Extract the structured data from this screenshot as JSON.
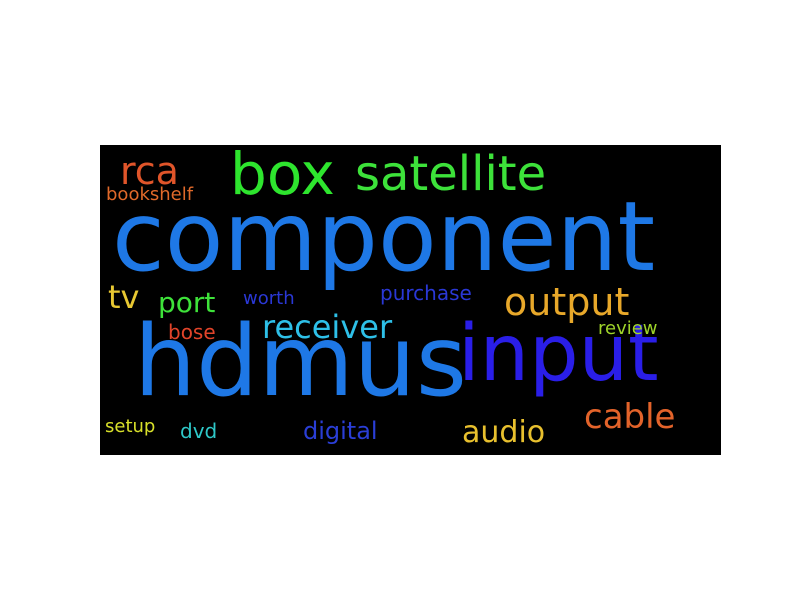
{
  "words": [
    {
      "key": "component",
      "text": "component",
      "color": "#1e78e6"
    },
    {
      "key": "hdmus",
      "text": "hdmus",
      "color": "#1e78e6"
    },
    {
      "key": "input",
      "text": "input",
      "color": "#2a1ee8"
    },
    {
      "key": "box",
      "text": "box",
      "color": "#2ee52e"
    },
    {
      "key": "satellite",
      "text": "satellite",
      "color": "#3de23a"
    },
    {
      "key": "rca",
      "text": "rca",
      "color": "#e0552a"
    },
    {
      "key": "bookshelf",
      "text": "bookshelf",
      "color": "#e0692a"
    },
    {
      "key": "tv",
      "text": "tv",
      "color": "#e8c832"
    },
    {
      "key": "port",
      "text": "port",
      "color": "#3ee23a"
    },
    {
      "key": "worth",
      "text": "worth",
      "color": "#2a38d6"
    },
    {
      "key": "purchase",
      "text": "purchase",
      "color": "#2a38d6"
    },
    {
      "key": "output",
      "text": "output",
      "color": "#e8a82a"
    },
    {
      "key": "receiver",
      "text": "receiver",
      "color": "#2ec0e8"
    },
    {
      "key": "bose",
      "text": "bose",
      "color": "#e2442a"
    },
    {
      "key": "review",
      "text": "review",
      "color": "#9fd42a"
    },
    {
      "key": "cable",
      "text": "cable",
      "color": "#e3632a"
    },
    {
      "key": "audio",
      "text": "audio",
      "color": "#e8c02e"
    },
    {
      "key": "digital",
      "text": "digital",
      "color": "#2a3ed6"
    },
    {
      "key": "dvd",
      "text": "dvd",
      "color": "#2ec8c8"
    },
    {
      "key": "setup",
      "text": "setup",
      "color": "#d8e02a"
    }
  ]
}
